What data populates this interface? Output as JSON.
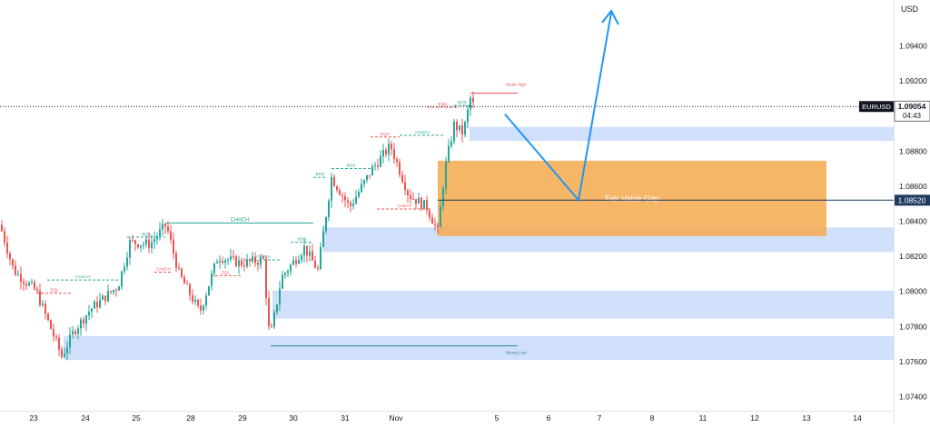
{
  "chart_data": {
    "type": "candlestick",
    "symbol": "EURUSD",
    "currency": "USD",
    "current_price": "1.09054",
    "countdown": "04:43",
    "marked_price": "1.08520",
    "fvg_label": "Fair Value Gap",
    "weak_high_label": "Weak High",
    "strong_low_label": "Strong Low",
    "price_ticks": [
      "1.09400",
      "1.09200",
      "1.08800",
      "1.08600",
      "1.08400",
      "1.08200",
      "1.08000",
      "1.07800",
      "1.07600",
      "1.07400"
    ],
    "date_ticks": [
      "23",
      "24",
      "25",
      "28",
      "29",
      "30",
      "31",
      "Nov",
      "5",
      "6",
      "7",
      "8",
      "11",
      "12",
      "13",
      "14"
    ],
    "ylim": [
      1.0732,
      1.0963
    ],
    "colors": {
      "up": "#26a69a",
      "down": "#ef5350",
      "fvg": "#f5a94e",
      "ob_zone": "#c8dafa",
      "arrow": "#2196f3",
      "structure_bull": "#26a69a",
      "structure_bear": "#ef5350",
      "axis_text": "#131722"
    },
    "zones": [
      {
        "name": "ob-zone-top",
        "y1": 1.08938,
        "y2": 1.08858
      },
      {
        "name": "ob-zone-mid",
        "y1": 1.08365,
        "y2": 1.08225
      },
      {
        "name": "ob-zone-low",
        "y1": 1.08005,
        "y2": 1.07845
      },
      {
        "name": "ob-zone-bottom",
        "y1": 1.07745,
        "y2": 1.0761
      }
    ],
    "fvg_zone": {
      "y1": 1.08745,
      "y2": 1.08315
    },
    "structure_labels": [
      {
        "text": "BOS",
        "kind": "bull"
      },
      {
        "text": "CHoCH",
        "kind": "bull"
      },
      {
        "text": "EQL",
        "kind": "bear"
      },
      {
        "text": "EQH",
        "kind": "bear"
      },
      {
        "text": "CHoCH",
        "kind": "bear"
      }
    ],
    "choch_main_label": "CHoCH"
  }
}
